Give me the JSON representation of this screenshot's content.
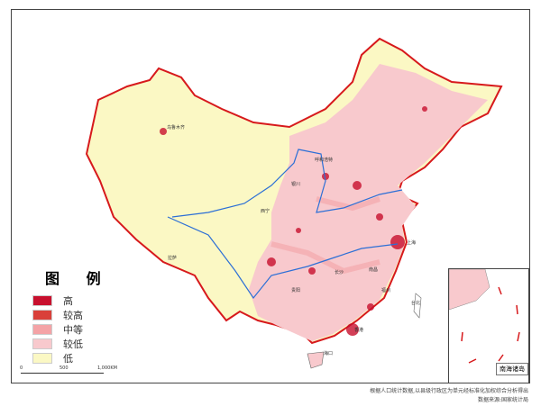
{
  "legend": {
    "title": "图 例",
    "items": [
      {
        "label": "高",
        "color": "#c8102e"
      },
      {
        "label": "较高",
        "color": "#d9403a"
      },
      {
        "label": "中等",
        "color": "#f4a3a6"
      },
      {
        "label": "较低",
        "color": "#f8c9cd"
      },
      {
        "label": "低",
        "color": "#fbf8c4"
      }
    ]
  },
  "scale_bar": {
    "ticks": [
      "0",
      "500",
      "1,000KM"
    ]
  },
  "cities": [
    "乌鲁木齐",
    "呼和浩特",
    "银川",
    "西宁",
    "拉萨",
    "上海",
    "贵阳",
    "长沙",
    "南昌",
    "福州",
    "台北",
    "香港",
    "海口"
  ],
  "inset": {
    "label": "南海诸岛"
  },
  "note": {
    "line1": "根据人口统计数据,以县级行政区为单元经标准化加权综合分析得出",
    "line2": "数据来源:国家统计局"
  },
  "colors": {
    "border": "#d7191c",
    "river": "#2c6fd6",
    "low": "#fbf8c4",
    "mid": "#f4a3a6",
    "high": "#c8102e"
  }
}
